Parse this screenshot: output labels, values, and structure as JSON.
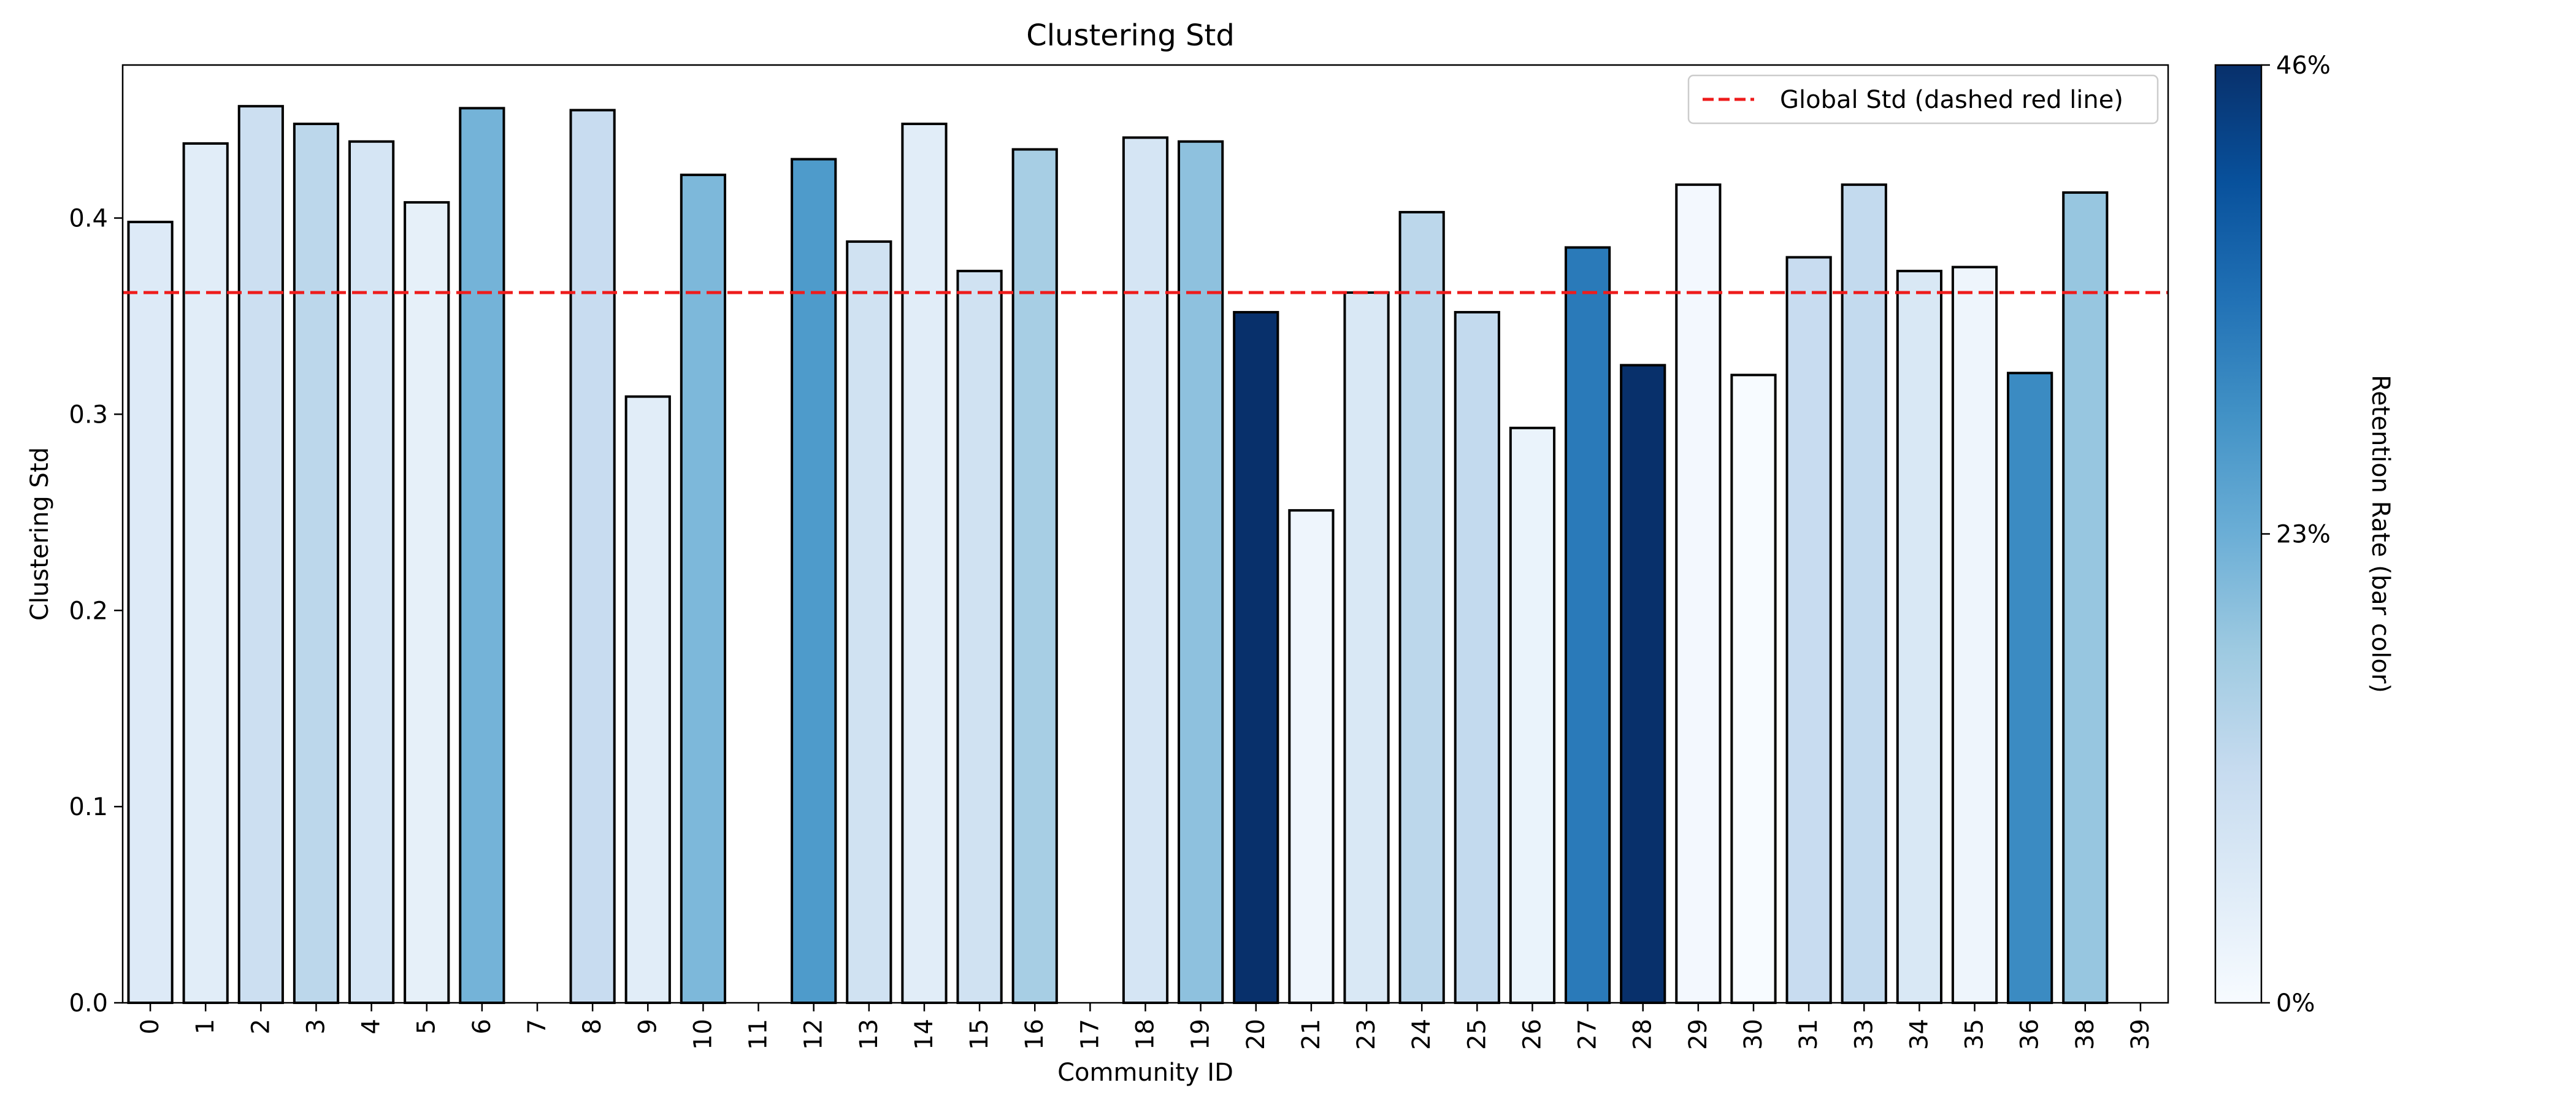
{
  "chart_data": {
    "type": "bar",
    "title": "Clustering Std",
    "xlabel": "Community ID",
    "ylabel": "Clustering Std",
    "ylim": [
      0,
      0.478
    ],
    "yticks": [
      0.0,
      0.1,
      0.2,
      0.3,
      0.4
    ],
    "ytick_labels": [
      "0.0",
      "0.1",
      "0.2",
      "0.3",
      "0.4"
    ],
    "categories": [
      "0",
      "1",
      "2",
      "3",
      "4",
      "5",
      "6",
      "7",
      "8",
      "9",
      "10",
      "11",
      "12",
      "13",
      "14",
      "15",
      "16",
      "17",
      "18",
      "19",
      "20",
      "21",
      "23",
      "24",
      "25",
      "26",
      "27",
      "28",
      "29",
      "30",
      "31",
      "33",
      "34",
      "35",
      "36",
      "38",
      "39"
    ],
    "values": [
      0.398,
      0.438,
      0.457,
      0.448,
      0.439,
      0.408,
      0.456,
      0.0,
      0.455,
      0.309,
      0.422,
      0.0,
      0.43,
      0.388,
      0.448,
      0.373,
      0.435,
      0.0,
      0.441,
      0.439,
      0.352,
      0.251,
      0.362,
      0.403,
      0.352,
      0.293,
      0.385,
      0.325,
      0.417,
      0.32,
      0.38,
      0.417,
      0.373,
      0.375,
      0.321,
      0.413,
      0.0
    ],
    "retention_rate": [
      0.06,
      0.05,
      0.1,
      0.13,
      0.08,
      0.04,
      0.22,
      0.0,
      0.11,
      0.05,
      0.21,
      0.0,
      0.27,
      0.09,
      0.05,
      0.09,
      0.16,
      0.0,
      0.08,
      0.19,
      0.46,
      0.02,
      0.07,
      0.13,
      0.12,
      0.03,
      0.33,
      0.46,
      0.01,
      0.0,
      0.11,
      0.12,
      0.07,
      0.02,
      0.3,
      0.18,
      0.0
    ],
    "bar_edge_color": "#000000",
    "reference_line": {
      "value": 0.362,
      "color": "#ee1c1c",
      "style": "dashed",
      "label": "Global Std (dashed red line)"
    },
    "legend_position": "top-right",
    "grid": false,
    "colorbar": {
      "label": "Retention Rate (bar color)",
      "range": [
        0,
        0.46
      ],
      "ticks": [
        0,
        0.23,
        0.46
      ],
      "tick_labels": [
        "0%",
        "23%",
        "46%"
      ],
      "colormap": "Blues",
      "stops": [
        "#f7fbff",
        "#deebf7",
        "#c6dbef",
        "#9ecae1",
        "#6baed6",
        "#4292c6",
        "#2171b5",
        "#08519c",
        "#08306b"
      ]
    }
  }
}
